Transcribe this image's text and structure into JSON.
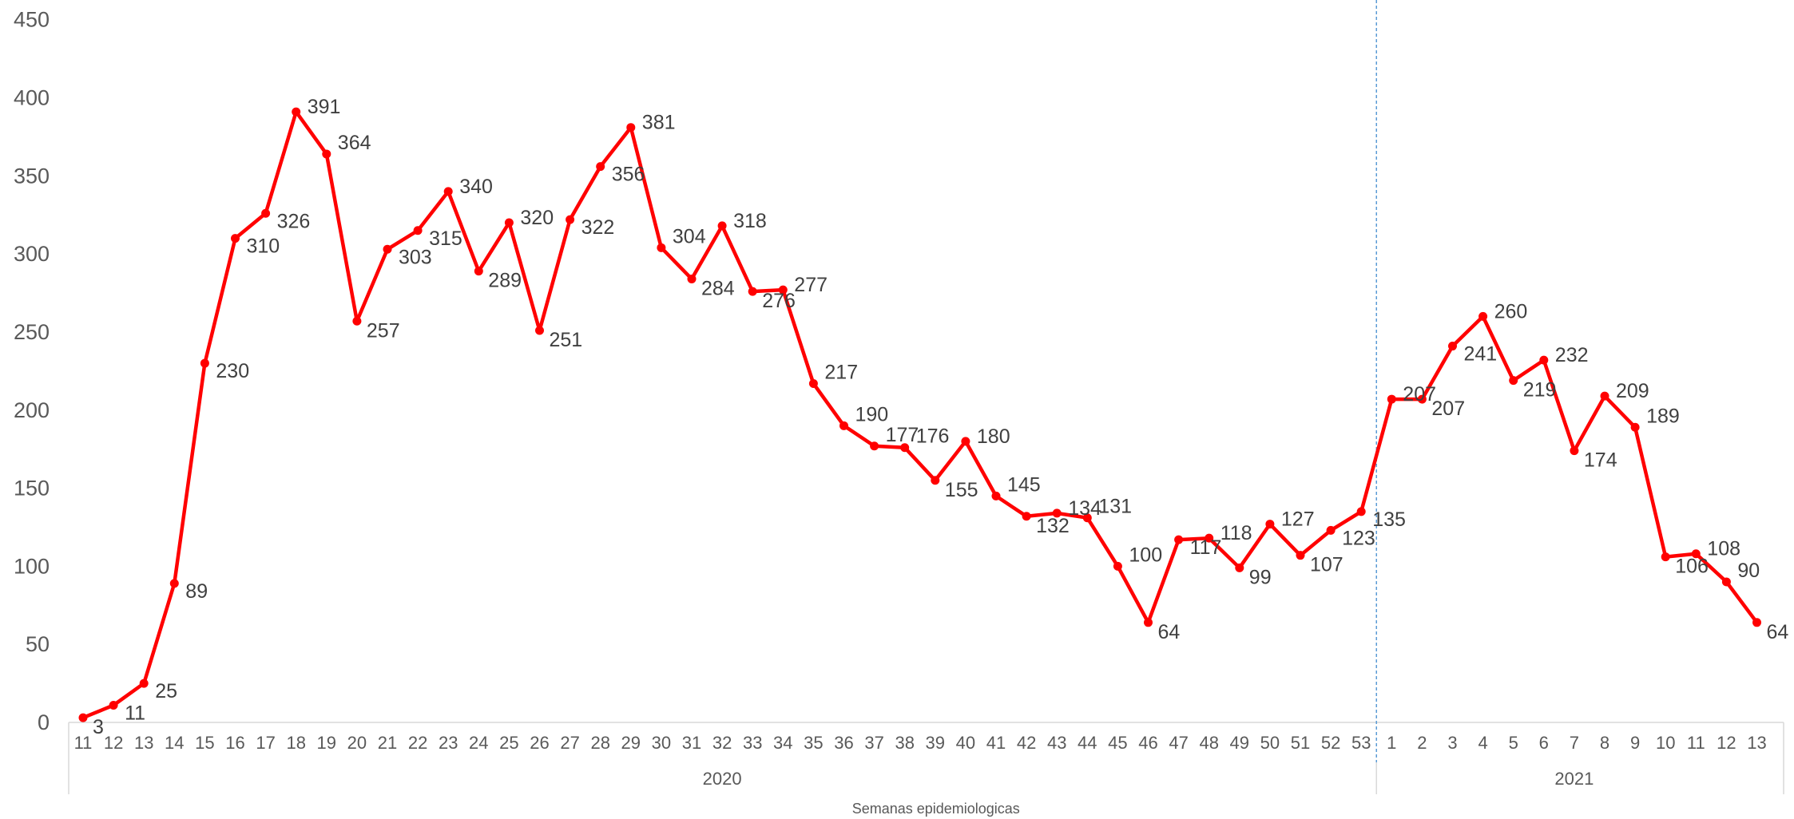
{
  "chart_data": {
    "type": "line",
    "title": "",
    "xlabel": "Semanas epidemiologicas",
    "ylabel": "",
    "ylim": [
      0,
      450
    ],
    "yticks": [
      0,
      50,
      100,
      150,
      200,
      250,
      300,
      350,
      400,
      450
    ],
    "grid": false,
    "legend": "none",
    "series_color": "#ff0000",
    "divider_color": "#5b9bd5",
    "groups": [
      {
        "label": "2020",
        "weeks": [
          "11",
          "12",
          "13",
          "14",
          "15",
          "16",
          "17",
          "18",
          "19",
          "20",
          "21",
          "22",
          "23",
          "24",
          "25",
          "26",
          "27",
          "28",
          "29",
          "30",
          "31",
          "32",
          "33",
          "34",
          "35",
          "36",
          "37",
          "38",
          "39",
          "40",
          "41",
          "42",
          "43",
          "44",
          "45",
          "46",
          "47",
          "48",
          "49",
          "50",
          "51",
          "52",
          "53"
        ]
      },
      {
        "label": "2021",
        "weeks": [
          "1",
          "2",
          "3",
          "4",
          "5",
          "6",
          "7",
          "8",
          "9",
          "10",
          "11",
          "12",
          "13"
        ]
      }
    ],
    "series": [
      {
        "values": [
          3,
          11,
          25,
          89,
          230,
          310,
          326,
          391,
          364,
          257,
          303,
          315,
          340,
          289,
          320,
          251,
          322,
          356,
          381,
          304,
          284,
          318,
          276,
          277,
          217,
          190,
          177,
          176,
          155,
          180,
          145,
          132,
          134,
          131,
          100,
          64,
          117,
          118,
          99,
          127,
          107,
          123,
          135,
          207,
          207,
          241,
          260,
          219,
          232,
          174,
          209,
          189,
          106,
          108,
          90,
          64
        ]
      }
    ]
  }
}
